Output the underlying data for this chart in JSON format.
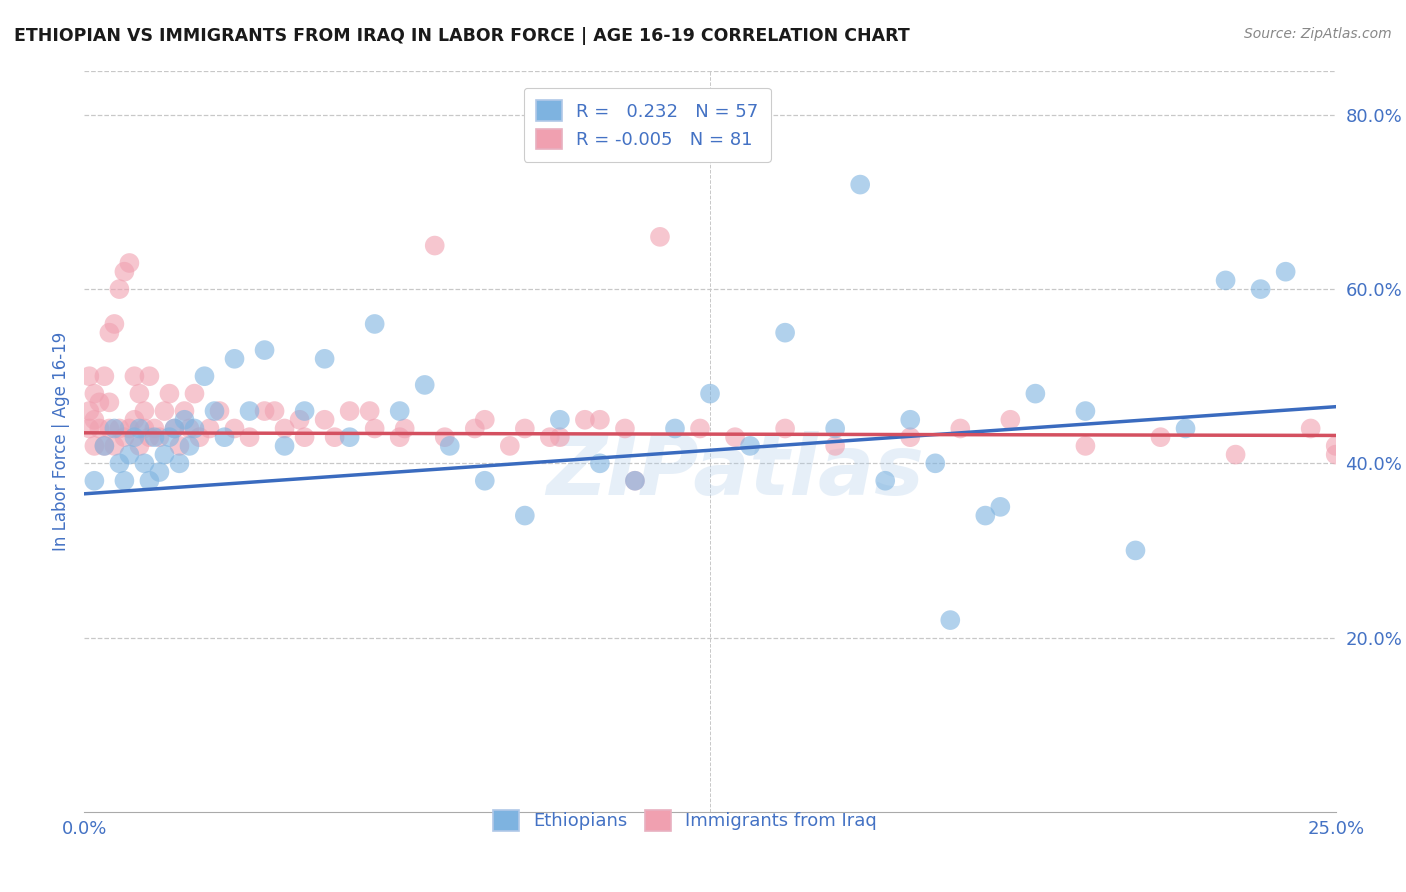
{
  "title": "ETHIOPIAN VS IMMIGRANTS FROM IRAQ IN LABOR FORCE | AGE 16-19 CORRELATION CHART",
  "source": "Source: ZipAtlas.com",
  "ylabel": "In Labor Force | Age 16-19",
  "x_min": 0.0,
  "x_max": 0.25,
  "y_min": 0.0,
  "y_max": 0.85,
  "x_ticks": [
    0.0,
    0.05,
    0.1,
    0.15,
    0.2,
    0.25
  ],
  "y_ticks_right": [
    0.2,
    0.4,
    0.6,
    0.8
  ],
  "y_tick_labels_right": [
    "20.0%",
    "40.0%",
    "60.0%",
    "80.0%"
  ],
  "blue_color": "#7eb3e0",
  "pink_color": "#f0a0b0",
  "blue_line_color": "#3a6bbf",
  "pink_line_color": "#d45060",
  "watermark": "ZIPatlas",
  "background_color": "#ffffff",
  "grid_color": "#c8c8c8",
  "title_color": "#1a1a1a",
  "axis_label_color": "#4472c4",
  "tick_color": "#4472c4",
  "blue_trend_y0": 0.365,
  "blue_trend_y1": 0.465,
  "pink_trend_y0": 0.435,
  "pink_trend_y1": 0.432,
  "blue_scatter_x": [
    0.002,
    0.004,
    0.006,
    0.007,
    0.008,
    0.009,
    0.01,
    0.011,
    0.012,
    0.013,
    0.014,
    0.015,
    0.016,
    0.017,
    0.018,
    0.019,
    0.02,
    0.021,
    0.022,
    0.024,
    0.026,
    0.028,
    0.03,
    0.033,
    0.036,
    0.04,
    0.044,
    0.048,
    0.053,
    0.058,
    0.063,
    0.068,
    0.073,
    0.08,
    0.088,
    0.095,
    0.103,
    0.11,
    0.118,
    0.125,
    0.133,
    0.14,
    0.15,
    0.16,
    0.17,
    0.18,
    0.19,
    0.2,
    0.21,
    0.22,
    0.228,
    0.235,
    0.24,
    0.155,
    0.165,
    0.173,
    0.183
  ],
  "blue_scatter_y": [
    0.38,
    0.42,
    0.44,
    0.4,
    0.38,
    0.41,
    0.43,
    0.44,
    0.4,
    0.38,
    0.43,
    0.39,
    0.41,
    0.43,
    0.44,
    0.4,
    0.45,
    0.42,
    0.44,
    0.5,
    0.46,
    0.43,
    0.52,
    0.46,
    0.53,
    0.42,
    0.46,
    0.52,
    0.43,
    0.56,
    0.46,
    0.49,
    0.42,
    0.38,
    0.34,
    0.45,
    0.4,
    0.38,
    0.44,
    0.48,
    0.42,
    0.55,
    0.44,
    0.38,
    0.4,
    0.34,
    0.48,
    0.46,
    0.3,
    0.44,
    0.61,
    0.6,
    0.62,
    0.72,
    0.45,
    0.22,
    0.35
  ],
  "pink_scatter_x": [
    0.001,
    0.001,
    0.001,
    0.002,
    0.002,
    0.002,
    0.003,
    0.003,
    0.004,
    0.004,
    0.005,
    0.005,
    0.005,
    0.006,
    0.006,
    0.007,
    0.007,
    0.008,
    0.008,
    0.009,
    0.009,
    0.01,
    0.01,
    0.011,
    0.011,
    0.012,
    0.012,
    0.013,
    0.013,
    0.014,
    0.015,
    0.016,
    0.017,
    0.018,
    0.019,
    0.02,
    0.021,
    0.022,
    0.023,
    0.025,
    0.027,
    0.03,
    0.033,
    0.036,
    0.04,
    0.044,
    0.048,
    0.053,
    0.058,
    0.063,
    0.07,
    0.078,
    0.085,
    0.093,
    0.1,
    0.108,
    0.115,
    0.123,
    0.13,
    0.14,
    0.15,
    0.165,
    0.175,
    0.185,
    0.2,
    0.215,
    0.23,
    0.245,
    0.25,
    0.25,
    0.038,
    0.043,
    0.05,
    0.057,
    0.064,
    0.072,
    0.08,
    0.088,
    0.095,
    0.103,
    0.11
  ],
  "pink_scatter_y": [
    0.44,
    0.46,
    0.5,
    0.42,
    0.45,
    0.48,
    0.44,
    0.47,
    0.42,
    0.5,
    0.44,
    0.47,
    0.55,
    0.42,
    0.56,
    0.44,
    0.6,
    0.43,
    0.62,
    0.44,
    0.63,
    0.45,
    0.5,
    0.42,
    0.48,
    0.44,
    0.46,
    0.43,
    0.5,
    0.44,
    0.43,
    0.46,
    0.48,
    0.44,
    0.42,
    0.46,
    0.44,
    0.48,
    0.43,
    0.44,
    0.46,
    0.44,
    0.43,
    0.46,
    0.44,
    0.43,
    0.45,
    0.46,
    0.44,
    0.43,
    0.65,
    0.44,
    0.42,
    0.43,
    0.45,
    0.44,
    0.66,
    0.44,
    0.43,
    0.44,
    0.42,
    0.43,
    0.44,
    0.45,
    0.42,
    0.43,
    0.41,
    0.44,
    0.42,
    0.41,
    0.46,
    0.45,
    0.43,
    0.46,
    0.44,
    0.43,
    0.45,
    0.44,
    0.43,
    0.45,
    0.38
  ]
}
